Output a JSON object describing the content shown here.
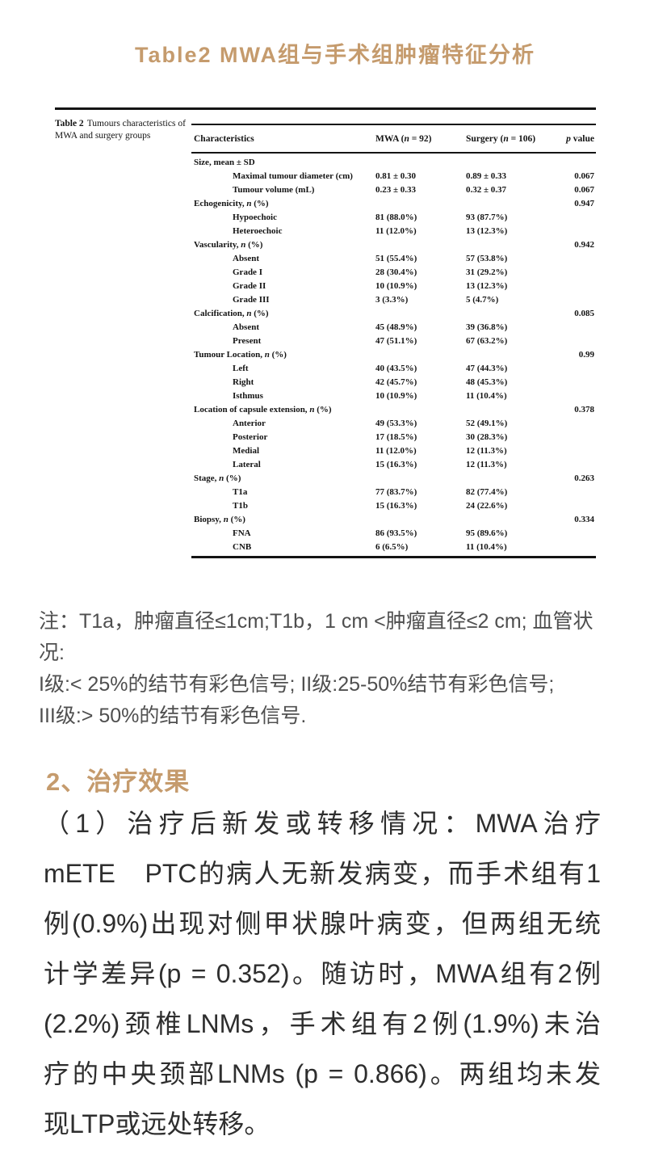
{
  "colors": {
    "accent": "#C59B6D",
    "body_text": "#2E2E2E",
    "note_text": "#4F4F4F",
    "table_ink": "#141414"
  },
  "page": {
    "title": "Table2 MWA组与手术组肿瘤特征分析"
  },
  "figure": {
    "caption_label": "Table 2",
    "caption_text": "Tumours characteristics of MWA and surgery groups",
    "table": {
      "columns": [
        "Characteristics",
        "MWA (n = 92)",
        "Surgery (n = 106)",
        "p value"
      ],
      "rows": [
        {
          "label": "Size, mean ± SD",
          "indent": 0,
          "mwa": "",
          "surgery": "",
          "p": ""
        },
        {
          "label": "Maximal tumour diameter (cm)",
          "indent": 1,
          "mwa": "0.81 ± 0.30",
          "surgery": "0.89 ± 0.33",
          "p": "0.067"
        },
        {
          "label": "Tumour volume (mL)",
          "indent": 1,
          "mwa": "0.23 ± 0.33",
          "surgery": "0.32 ± 0.37",
          "p": "0.067"
        },
        {
          "label": "Echogenicity, n (%)",
          "indent": 0,
          "mwa": "",
          "surgery": "",
          "p": "0.947"
        },
        {
          "label": "Hypoechoic",
          "indent": 1,
          "mwa": "81 (88.0%)",
          "surgery": "93 (87.7%)",
          "p": ""
        },
        {
          "label": "Heteroechoic",
          "indent": 1,
          "mwa": "11 (12.0%)",
          "surgery": "13 (12.3%)",
          "p": ""
        },
        {
          "label": "Vascularity, n (%)",
          "indent": 0,
          "mwa": "",
          "surgery": "",
          "p": "0.942"
        },
        {
          "label": "Absent",
          "indent": 1,
          "mwa": "51 (55.4%)",
          "surgery": "57 (53.8%)",
          "p": ""
        },
        {
          "label": "Grade I",
          "indent": 1,
          "mwa": "28 (30.4%)",
          "surgery": "31 (29.2%)",
          "p": ""
        },
        {
          "label": "Grade II",
          "indent": 1,
          "mwa": "10 (10.9%)",
          "surgery": "13 (12.3%)",
          "p": ""
        },
        {
          "label": "Grade III",
          "indent": 1,
          "mwa": "3 (3.3%)",
          "surgery": "5 (4.7%)",
          "p": ""
        },
        {
          "label": "Calcification, n (%)",
          "indent": 0,
          "mwa": "",
          "surgery": "",
          "p": "0.085"
        },
        {
          "label": "Absent",
          "indent": 1,
          "mwa": "45 (48.9%)",
          "surgery": "39 (36.8%)",
          "p": ""
        },
        {
          "label": "Present",
          "indent": 1,
          "mwa": "47 (51.1%)",
          "surgery": "67 (63.2%)",
          "p": ""
        },
        {
          "label": "Tumour Location, n (%)",
          "indent": 0,
          "mwa": "",
          "surgery": "",
          "p": "0.99"
        },
        {
          "label": "Left",
          "indent": 1,
          "mwa": "40 (43.5%)",
          "surgery": "47 (44.3%)",
          "p": ""
        },
        {
          "label": "Right",
          "indent": 1,
          "mwa": "42 (45.7%)",
          "surgery": "48 (45.3%)",
          "p": ""
        },
        {
          "label": "Isthmus",
          "indent": 1,
          "mwa": "10 (10.9%)",
          "surgery": "11 (10.4%)",
          "p": ""
        },
        {
          "label": "Location of capsule extension, n (%)",
          "indent": 0,
          "mwa": "",
          "surgery": "",
          "p": "0.378"
        },
        {
          "label": "Anterior",
          "indent": 1,
          "mwa": "49 (53.3%)",
          "surgery": "52 (49.1%)",
          "p": ""
        },
        {
          "label": "Posterior",
          "indent": 1,
          "mwa": "17 (18.5%)",
          "surgery": "30 (28.3%)",
          "p": ""
        },
        {
          "label": "Medial",
          "indent": 1,
          "mwa": "11 (12.0%)",
          "surgery": "12 (11.3%)",
          "p": ""
        },
        {
          "label": "Lateral",
          "indent": 1,
          "mwa": "15 (16.3%)",
          "surgery": "12 (11.3%)",
          "p": ""
        },
        {
          "label": "Stage, n (%)",
          "indent": 0,
          "mwa": "",
          "surgery": "",
          "p": "0.263"
        },
        {
          "label": "T1a",
          "indent": 1,
          "mwa": "77 (83.7%)",
          "surgery": "82 (77.4%)",
          "p": ""
        },
        {
          "label": "T1b",
          "indent": 1,
          "mwa": "15 (16.3%)",
          "surgery": "24 (22.6%)",
          "p": ""
        },
        {
          "label": "Biopsy, n (%)",
          "indent": 0,
          "mwa": "",
          "surgery": "",
          "p": "0.334"
        },
        {
          "label": "FNA",
          "indent": 1,
          "mwa": "86 (93.5%)",
          "surgery": "95 (89.6%)",
          "p": ""
        },
        {
          "label": "CNB",
          "indent": 1,
          "mwa": "6 (6.5%)",
          "surgery": "11 (10.4%)",
          "p": ""
        }
      ]
    }
  },
  "note": {
    "text": "注：T1a，肿瘤直径≤1cm;T1b，1 cm <肿瘤直径≤2 cm; 血管状况:\nI级:< 25%的结节有彩色信号; II级:25-50%结节有彩色信号;\nIII级:> 50%的结节有彩色信号."
  },
  "section": {
    "heading": "2、治疗效果",
    "paragraph_lines": [
      "（1）治疗后新发或转移情况：MWA治疗",
      "mETE　PTC的病人无新发病变，而手术组有1",
      "例(0.9%)出现对侧甲状腺叶病变，但两组无统",
      "计学差异(p = 0.352)。随访时，MWA组有2例",
      "(2.2%)颈椎LNMs，手术组有2例(1.9%)未治",
      "疗的中央颈部LNMs (p = 0.866)。两组均未发",
      "现LTP或远处转移。"
    ]
  }
}
